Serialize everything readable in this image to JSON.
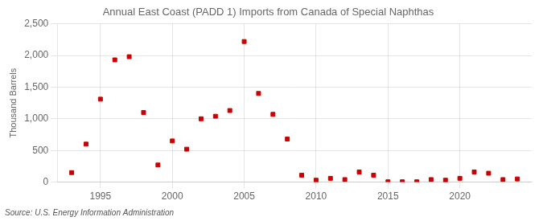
{
  "chart_data": {
    "type": "scatter",
    "title": "Annual East Coast (PADD 1) Imports from Canada of Special Naphthas",
    "ylabel": "Thousand Barrels",
    "annotation": "Source: U.S. Energy Information Administration",
    "x": [
      1993,
      1994,
      1995,
      1996,
      1997,
      1998,
      1999,
      2000,
      2001,
      2002,
      2003,
      2004,
      2005,
      2006,
      2007,
      2008,
      2009,
      2010,
      2011,
      2012,
      2013,
      2014,
      2015,
      2016,
      2017,
      2018,
      2019,
      2020,
      2021,
      2022,
      2023,
      2024
    ],
    "values": [
      150,
      600,
      1310,
      1930,
      1980,
      1100,
      270,
      650,
      520,
      1000,
      1040,
      1130,
      2220,
      1400,
      1070,
      680,
      110,
      30,
      60,
      40,
      160,
      110,
      5,
      5,
      5,
      40,
      30,
      60,
      160,
      140,
      40,
      50
    ],
    "color": "#cc0000",
    "marker": "square",
    "xlim": [
      1992,
      2025
    ],
    "xticks": [
      1995,
      2000,
      2005,
      2010,
      2015,
      2020
    ],
    "ylim": [
      0,
      2500
    ],
    "yticks": [
      0,
      500,
      {
        "value": 1000,
        "label": "1,000"
      },
      {
        "value": 1500,
        "label": "1,500"
      },
      {
        "value": 2000,
        "label": "2,000"
      },
      {
        "value": 2500,
        "label": "2,500"
      }
    ],
    "grid": true
  }
}
